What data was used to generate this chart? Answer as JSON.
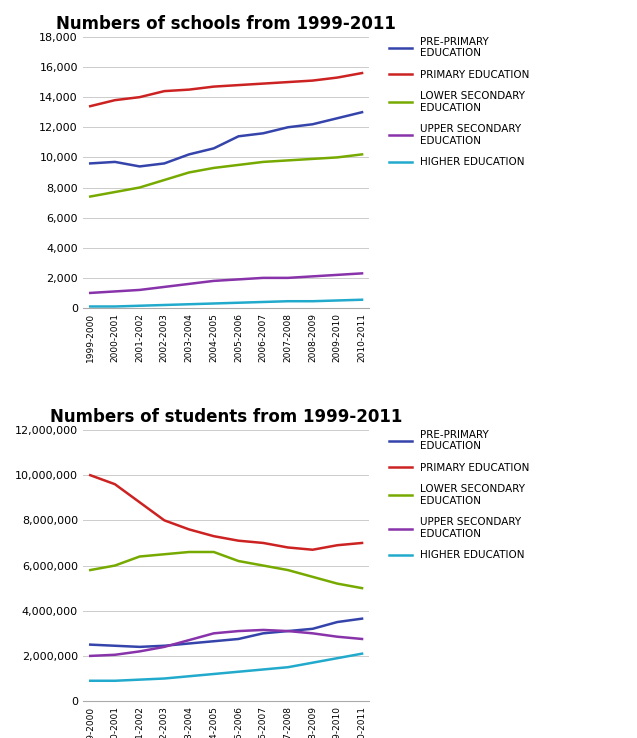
{
  "years": [
    "1999-2000",
    "2000-2001",
    "2001-2002",
    "2002-2003",
    "2003-2004",
    "2004-2005",
    "2005-2006",
    "2006-2007",
    "2007-2008",
    "2008-2009",
    "2009-2010",
    "2010-2011"
  ],
  "schools": {
    "pre_primary": [
      9600,
      9700,
      9400,
      9600,
      10200,
      10600,
      11400,
      11600,
      12000,
      12200,
      12600,
      13000
    ],
    "primary": [
      13400,
      13800,
      14000,
      14400,
      14500,
      14700,
      14800,
      14900,
      15000,
      15100,
      15300,
      15600
    ],
    "lower_secondary": [
      7400,
      7700,
      8000,
      8500,
      9000,
      9300,
      9500,
      9700,
      9800,
      9900,
      10000,
      10200
    ],
    "upper_secondary": [
      1000,
      1100,
      1200,
      1400,
      1600,
      1800,
      1900,
      2000,
      2000,
      2100,
      2200,
      2300
    ],
    "higher": [
      100,
      100,
      150,
      200,
      250,
      300,
      350,
      400,
      450,
      450,
      500,
      550
    ]
  },
  "students": {
    "pre_primary": [
      2500000,
      2450000,
      2400000,
      2450000,
      2550000,
      2650000,
      2750000,
      3000000,
      3100000,
      3200000,
      3500000,
      3650000
    ],
    "primary": [
      10000000,
      9600000,
      8800000,
      8000000,
      7600000,
      7300000,
      7100000,
      7000000,
      6800000,
      6700000,
      6900000,
      7000000
    ],
    "lower_secondary": [
      5800000,
      6000000,
      6400000,
      6500000,
      6600000,
      6600000,
      6200000,
      6000000,
      5800000,
      5500000,
      5200000,
      5000000
    ],
    "upper_secondary": [
      2000000,
      2050000,
      2200000,
      2400000,
      2700000,
      3000000,
      3100000,
      3150000,
      3100000,
      3000000,
      2850000,
      2750000
    ],
    "higher": [
      900000,
      900000,
      950000,
      1000000,
      1100000,
      1200000,
      1300000,
      1400000,
      1500000,
      1700000,
      1900000,
      2100000
    ]
  },
  "colors": {
    "pre_primary": "#3444aa",
    "primary": "#cc2222",
    "lower_secondary": "#77aa00",
    "upper_secondary": "#8833aa",
    "higher": "#22aacc"
  },
  "legend_labels": {
    "pre_primary": "PRE-PRIMARY\nEDUCATION",
    "primary": "PRIMARY EDUCATION",
    "lower_secondary": "LOWER SECONDARY\nEDUCATION",
    "upper_secondary": "UPPER SECONDARY\nEDUCATION",
    "higher": "HIGHER EDUCATION"
  },
  "title1": "Numbers of schools from 1999-2011",
  "title2": "Numbers of students from 1999-2011",
  "schools_ylim": [
    0,
    18000
  ],
  "students_ylim": [
    0,
    12000000
  ],
  "schools_yticks": [
    0,
    2000,
    4000,
    6000,
    8000,
    10000,
    12000,
    14000,
    16000,
    18000
  ],
  "students_yticks": [
    0,
    2000000,
    4000000,
    6000000,
    8000000,
    10000000,
    12000000
  ]
}
